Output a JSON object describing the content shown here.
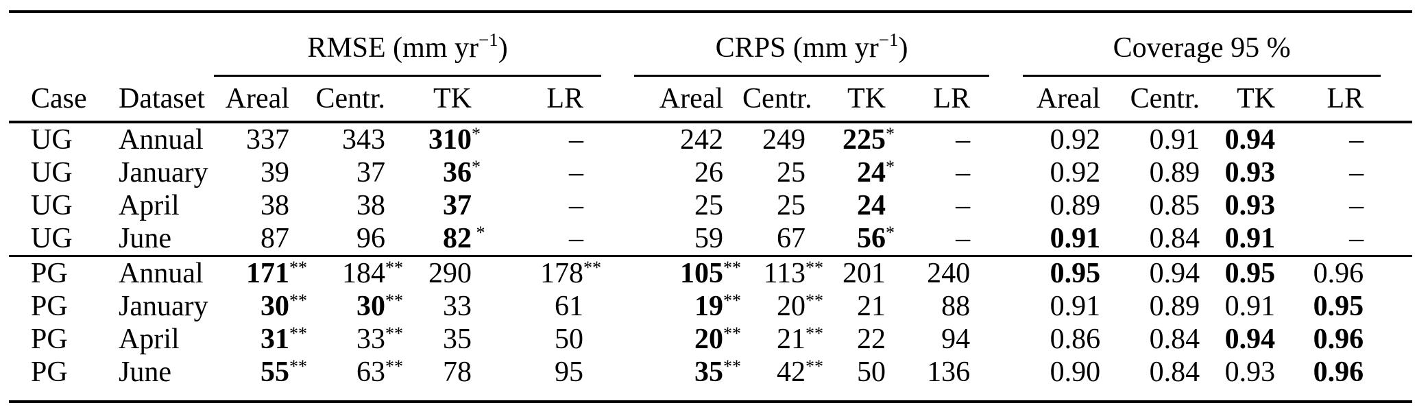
{
  "table": {
    "corner": {
      "case": "Case",
      "dataset": "Dataset"
    },
    "groups": [
      {
        "key": "rmse",
        "label_main": "RMSE (mm yr",
        "label_sup": "−1",
        "label_close": ")"
      },
      {
        "key": "crps",
        "label_main": "CRPS (mm yr",
        "label_sup": "−1",
        "label_close": ")"
      },
      {
        "key": "coverage",
        "label_main": "Coverage 95 %",
        "label_sup": "",
        "label_close": ""
      }
    ],
    "columns": [
      "Areal",
      "Centr.",
      "TK",
      "LR"
    ],
    "column_keys": [
      "areal",
      "centr",
      "tk",
      "lr"
    ],
    "dash": "–",
    "rows": [
      {
        "case": "UG",
        "dataset": "Annual",
        "cells": [
          {
            "v": "337"
          },
          {
            "v": "343"
          },
          {
            "v": "310",
            "sup": "*",
            "b": true
          },
          {
            "v": "–"
          },
          {
            "v": "242"
          },
          {
            "v": "249"
          },
          {
            "v": "225",
            "sup": "*",
            "b": true
          },
          {
            "v": "–"
          },
          {
            "v": "0.92"
          },
          {
            "v": "0.91"
          },
          {
            "v": "0.94",
            "b": true
          },
          {
            "v": "–"
          }
        ]
      },
      {
        "case": "UG",
        "dataset": "January",
        "cells": [
          {
            "v": "39"
          },
          {
            "v": "37"
          },
          {
            "v": "36",
            "sup": "*",
            "b": true
          },
          {
            "v": "–"
          },
          {
            "v": "26"
          },
          {
            "v": "25"
          },
          {
            "v": "24",
            "sup": "*",
            "b": true
          },
          {
            "v": "–"
          },
          {
            "v": "0.92"
          },
          {
            "v": "0.89"
          },
          {
            "v": "0.93",
            "b": true
          },
          {
            "v": "–"
          }
        ]
      },
      {
        "case": "UG",
        "dataset": "April",
        "cells": [
          {
            "v": "38"
          },
          {
            "v": "38"
          },
          {
            "v": "37",
            "b": true
          },
          {
            "v": "–"
          },
          {
            "v": "25"
          },
          {
            "v": "25"
          },
          {
            "v": "24",
            "b": true
          },
          {
            "v": "–"
          },
          {
            "v": "0.89"
          },
          {
            "v": "0.85"
          },
          {
            "v": "0.93",
            "b": true
          },
          {
            "v": "–"
          }
        ]
      },
      {
        "case": "UG",
        "dataset": "June",
        "block_end": true,
        "cells": [
          {
            "v": "87"
          },
          {
            "v": "96"
          },
          {
            "v": "82",
            "sup": " *",
            "b": true
          },
          {
            "v": "–"
          },
          {
            "v": "59"
          },
          {
            "v": "67"
          },
          {
            "v": "56",
            "sup": "*",
            "b": true
          },
          {
            "v": "–"
          },
          {
            "v": "0.91",
            "b": true
          },
          {
            "v": "0.84"
          },
          {
            "v": "0.91",
            "b": true
          },
          {
            "v": "–"
          }
        ]
      },
      {
        "case": "PG",
        "dataset": "Annual",
        "cells": [
          {
            "v": "171",
            "sup": "**",
            "b": true
          },
          {
            "v": "184",
            "sup": "**"
          },
          {
            "v": "290"
          },
          {
            "v": "178",
            "sup": "**"
          },
          {
            "v": "105",
            "sup": "**",
            "b": true
          },
          {
            "v": "113",
            "sup": "**"
          },
          {
            "v": "201"
          },
          {
            "v": "240"
          },
          {
            "v": "0.95",
            "b": true
          },
          {
            "v": "0.94"
          },
          {
            "v": "0.95",
            "b": true
          },
          {
            "v": "0.96"
          }
        ]
      },
      {
        "case": "PG",
        "dataset": "January",
        "cells": [
          {
            "v": "30",
            "sup": "**",
            "b": true
          },
          {
            "v": "30",
            "sup": "**",
            "b": true
          },
          {
            "v": "33"
          },
          {
            "v": "61"
          },
          {
            "v": "19",
            "sup": "**",
            "b": true
          },
          {
            "v": "20",
            "sup": "**"
          },
          {
            "v": "21"
          },
          {
            "v": "88"
          },
          {
            "v": "0.91"
          },
          {
            "v": "0.89"
          },
          {
            "v": "0.91"
          },
          {
            "v": "0.95",
            "b": true
          }
        ]
      },
      {
        "case": "PG",
        "dataset": "April",
        "cells": [
          {
            "v": "31",
            "sup": "**",
            "b": true
          },
          {
            "v": "33",
            "sup": "**"
          },
          {
            "v": "35"
          },
          {
            "v": "50"
          },
          {
            "v": "20",
            "sup": "**",
            "b": true
          },
          {
            "v": "21",
            "sup": "**"
          },
          {
            "v": "22"
          },
          {
            "v": "94"
          },
          {
            "v": "0.86"
          },
          {
            "v": "0.84"
          },
          {
            "v": "0.94",
            "b": true
          },
          {
            "v": "0.96",
            "b": true
          }
        ]
      },
      {
        "case": "PG",
        "dataset": "June",
        "cells": [
          {
            "v": "55",
            "sup": "**",
            "b": true
          },
          {
            "v": "63",
            "sup": "**"
          },
          {
            "v": "78"
          },
          {
            "v": "95"
          },
          {
            "v": "35",
            "sup": "**",
            "b": true
          },
          {
            "v": "42",
            "sup": "**"
          },
          {
            "v": "50"
          },
          {
            "v": "136"
          },
          {
            "v": "0.90"
          },
          {
            "v": "0.84"
          },
          {
            "v": "0.93"
          },
          {
            "v": "0.96",
            "b": true
          }
        ]
      }
    ]
  }
}
